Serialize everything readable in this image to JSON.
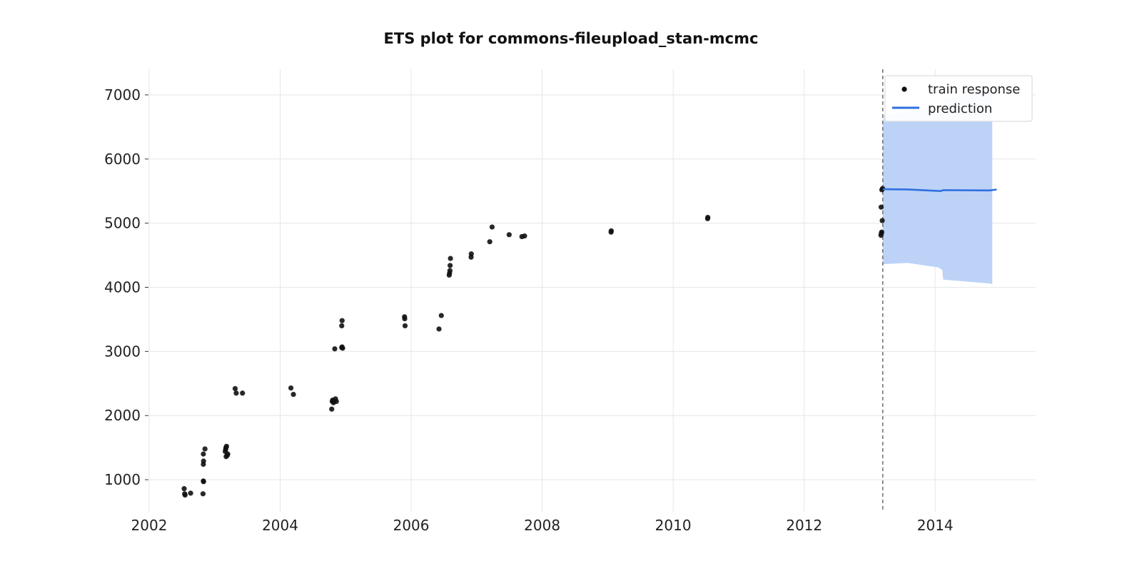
{
  "chart_data": {
    "type": "scatter",
    "title": "ETS plot for commons-fileupload_stan-mcmc",
    "xlabel": "",
    "ylabel": "",
    "xlim": [
      "2002-01-01",
      "2015-07-15"
    ],
    "ylim": [
      500,
      7400
    ],
    "x_ticks": [
      "2002",
      "2004",
      "2006",
      "2008",
      "2010",
      "2012",
      "2014"
    ],
    "y_ticks": [
      "1000",
      "2000",
      "3000",
      "4000",
      "5000",
      "6000",
      "7000"
    ],
    "grid": true,
    "legend": {
      "position": "top-right",
      "entries": [
        "train response",
        "prediction"
      ]
    },
    "colors": {
      "train_response": "#111111",
      "prediction_line": "#2f6fe0",
      "interval_fill": "#bcd3f7",
      "interval_fill_light": "#dde8fb",
      "cutoff_line": "#777777",
      "grid": "#e6e6e6"
    },
    "cutoff_date": "2013-03-15",
    "series": [
      {
        "name": "train response",
        "kind": "scatter",
        "points": [
          [
            "2002-07-15",
            860
          ],
          [
            "2002-07-18",
            780
          ],
          [
            "2002-07-20",
            760
          ],
          [
            "2002-08-20",
            790
          ],
          [
            "2002-10-28",
            780
          ],
          [
            "2002-10-30",
            980
          ],
          [
            "2002-10-31",
            970
          ],
          [
            "2002-10-30",
            1240
          ],
          [
            "2002-10-31",
            1290
          ],
          [
            "2002-10-30",
            1400
          ],
          [
            "2002-11-08",
            1480
          ],
          [
            "2003-03-01",
            1440
          ],
          [
            "2003-03-03",
            1470
          ],
          [
            "2003-03-05",
            1500
          ],
          [
            "2003-03-08",
            1520
          ],
          [
            "2003-03-06",
            1360
          ],
          [
            "2003-03-12",
            1380
          ],
          [
            "2003-03-15",
            1400
          ],
          [
            "2003-04-25",
            2420
          ],
          [
            "2003-05-01",
            2350
          ],
          [
            "2003-06-05",
            2350
          ],
          [
            "2004-03-01",
            2430
          ],
          [
            "2004-03-15",
            2330
          ],
          [
            "2004-10-15",
            2100
          ],
          [
            "2004-10-18",
            2220
          ],
          [
            "2004-10-20",
            2240
          ],
          [
            "2004-10-25",
            2200
          ],
          [
            "2004-11-05",
            2260
          ],
          [
            "2004-11-10",
            2220
          ],
          [
            "2004-11-01",
            3040
          ],
          [
            "2004-12-10",
            3060
          ],
          [
            "2004-12-12",
            3070
          ],
          [
            "2004-12-15",
            3050
          ],
          [
            "2004-12-10",
            3400
          ],
          [
            "2004-12-12",
            3480
          ],
          [
            "2005-11-25",
            3540
          ],
          [
            "2005-11-26",
            3510
          ],
          [
            "2005-11-28",
            3400
          ],
          [
            "2006-06-05",
            3350
          ],
          [
            "2006-06-18",
            3560
          ],
          [
            "2006-08-01",
            4190
          ],
          [
            "2006-08-03",
            4220
          ],
          [
            "2006-08-05",
            4260
          ],
          [
            "2006-08-06",
            4340
          ],
          [
            "2006-08-08",
            4450
          ],
          [
            "2006-12-01",
            4470
          ],
          [
            "2006-12-02",
            4520
          ],
          [
            "2007-03-15",
            4710
          ],
          [
            "2007-03-28",
            4940
          ],
          [
            "2007-07-01",
            4820
          ],
          [
            "2007-09-10",
            4790
          ],
          [
            "2007-09-25",
            4800
          ],
          [
            "2009-01-20",
            4860
          ],
          [
            "2009-01-21",
            4880
          ],
          [
            "2010-07-12",
            5070
          ],
          [
            "2010-07-13",
            5090
          ],
          [
            "2013-03-05",
            4810
          ],
          [
            "2013-03-07",
            4840
          ],
          [
            "2013-03-09",
            4860
          ],
          [
            "2013-03-06",
            5250
          ],
          [
            "2013-03-12",
            5040
          ],
          [
            "2013-03-10",
            5520
          ],
          [
            "2013-03-14",
            5540
          ]
        ]
      },
      {
        "name": "prediction",
        "kind": "line",
        "points": [
          [
            "2013-03-15",
            5530
          ],
          [
            "2013-08-01",
            5525
          ],
          [
            "2014-02-01",
            5500
          ],
          [
            "2014-02-15",
            5515
          ],
          [
            "2014-11-01",
            5510
          ],
          [
            "2014-12-10",
            5525
          ]
        ],
        "interval_upper": [
          [
            "2013-03-15",
            6680
          ],
          [
            "2013-08-01",
            6740
          ],
          [
            "2014-02-01",
            6780
          ],
          [
            "2014-02-15",
            6930
          ],
          [
            "2014-11-01",
            7060
          ],
          [
            "2014-11-15",
            7100
          ]
        ],
        "interval_lower": [
          [
            "2013-03-15",
            4360
          ],
          [
            "2013-08-01",
            4380
          ],
          [
            "2014-01-20",
            4310
          ],
          [
            "2014-02-10",
            4270
          ],
          [
            "2014-02-15",
            4120
          ],
          [
            "2014-11-01",
            4060
          ],
          [
            "2014-11-15",
            4050
          ]
        ],
        "inner_upper": [
          [
            "2013-03-15",
            6580
          ],
          [
            "2014-11-15",
            6580
          ]
        ]
      }
    ]
  }
}
